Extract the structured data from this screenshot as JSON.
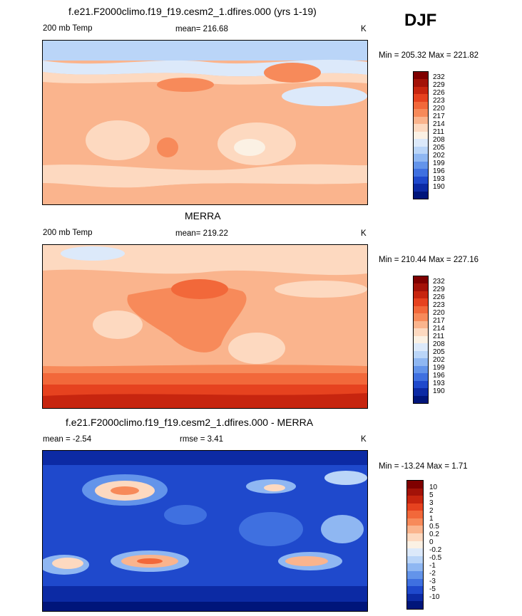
{
  "season": "DJF",
  "panels": [
    {
      "title": "f.e21.F2000climo.f19_f19.cesm2_1.dfires.000 (yrs 1-19)",
      "left_label": "200 mb Temp",
      "center_label": "mean= 216.68",
      "units": "K",
      "minmax": "Min = 205.32 Max = 221.82",
      "palette": "temp",
      "colorbar_labels": [
        "232",
        "229",
        "226",
        "223",
        "220",
        "217",
        "214",
        "211",
        "208",
        "205",
        "202",
        "199",
        "196",
        "193",
        "190"
      ]
    },
    {
      "title": "MERRA",
      "left_label": "200 mb Temp",
      "center_label": "mean= 219.22",
      "units": "K",
      "minmax": "Min = 210.44 Max = 227.16",
      "palette": "temp",
      "colorbar_labels": [
        "232",
        "229",
        "226",
        "223",
        "220",
        "217",
        "214",
        "211",
        "208",
        "205",
        "202",
        "199",
        "196",
        "193",
        "190"
      ]
    },
    {
      "title": "f.e21.F2000climo.f19_f19.cesm2_1.dfires.000 - MERRA",
      "left_label": "mean =  -2.54",
      "center_label": "rmse =   3.41",
      "units": "K",
      "minmax": "Min = -13.24 Max =   1.71",
      "palette": "diff",
      "colorbar_labels": [
        "10",
        "5",
        "3",
        "2",
        "1",
        "0.5",
        "0.2",
        "0",
        "-0.2",
        "-0.5",
        "-1",
        "-2",
        "-3",
        "-5",
        "-10"
      ]
    }
  ],
  "colors": {
    "temp": [
      "#7f0000",
      "#a31208",
      "#c7250f",
      "#e6421f",
      "#f2683a",
      "#f78a5a",
      "#fab48d",
      "#fdd9c0",
      "#fbf1e4",
      "#dce9fa",
      "#bad5f8",
      "#8fb7f2",
      "#6394ea",
      "#3f70e0",
      "#1f49cc",
      "#0c2aa4",
      "#00157a"
    ],
    "diff": [
      "#7f0000",
      "#a31208",
      "#c7250f",
      "#e6421f",
      "#f2683a",
      "#f78a5a",
      "#fab48d",
      "#fdd9c0",
      "#fbf1e4",
      "#dce9fa",
      "#bad5f8",
      "#8fb7f2",
      "#6394ea",
      "#3f70e0",
      "#1f49cc",
      "#0c2aa4",
      "#00157a"
    ]
  }
}
